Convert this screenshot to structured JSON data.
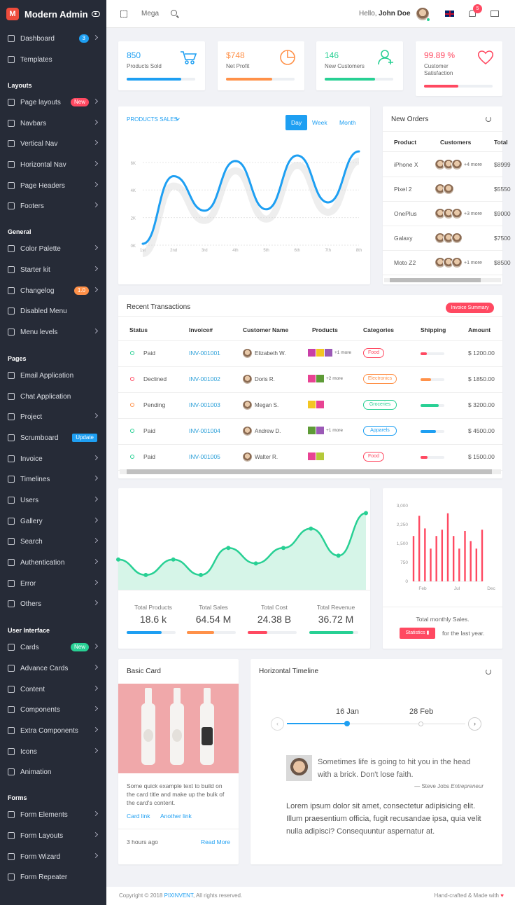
{
  "brand": {
    "name": "Modern Admin",
    "logo_letter": "M"
  },
  "topbar": {
    "mega_label": "Mega",
    "greeting": "Hello,",
    "user_name": "John Doe",
    "notif_count": "5"
  },
  "sidebar": {
    "items": [
      {
        "label": "Dashboard",
        "icon": "home-icon",
        "badge": "3",
        "badge_color": "#1e9ff2"
      },
      {
        "label": "Templates",
        "icon": "monitor-icon"
      },
      {
        "section": "Layouts"
      },
      {
        "label": "Page layouts",
        "icon": "columns-icon",
        "badge": "New",
        "badge_color": "#ff4961"
      },
      {
        "label": "Navbars",
        "icon": "menu-icon"
      },
      {
        "label": "Vertical Nav",
        "icon": "vertical-arrows-icon"
      },
      {
        "label": "Horizontal Nav",
        "icon": "horizontal-arrows-icon"
      },
      {
        "label": "Page Headers",
        "icon": "header-icon"
      },
      {
        "label": "Footers",
        "icon": "download-icon"
      },
      {
        "section": "General"
      },
      {
        "label": "Color Palette",
        "icon": "brush-icon"
      },
      {
        "label": "Starter kit",
        "icon": "gear-icon"
      },
      {
        "label": "Changelog",
        "icon": "copy-icon",
        "badge": "1.0",
        "badge_color": "#ff9149"
      },
      {
        "label": "Disabled Menu",
        "icon": "eye-off-icon"
      },
      {
        "label": "Menu levels",
        "icon": "settings-icon"
      },
      {
        "section": "Pages"
      },
      {
        "label": "Email Application",
        "icon": "mail-icon"
      },
      {
        "label": "Chat Application",
        "icon": "chat-icon"
      },
      {
        "label": "Project",
        "icon": "briefcase-icon"
      },
      {
        "label": "Scrumboard",
        "icon": "check-square-icon",
        "badge": "Update",
        "badge_color": "#1e9ff2"
      },
      {
        "label": "Invoice",
        "icon": "file-icon"
      },
      {
        "label": "Timelines",
        "icon": "timeline-icon"
      },
      {
        "label": "Users",
        "icon": "user-icon"
      },
      {
        "label": "Gallery",
        "icon": "image-icon"
      },
      {
        "label": "Search",
        "icon": "search-icon"
      },
      {
        "label": "Authentication",
        "icon": "lock-icon"
      },
      {
        "label": "Error",
        "icon": "warning-icon"
      },
      {
        "label": "Others",
        "icon": "document-icon"
      },
      {
        "section": "User Interface"
      },
      {
        "label": "Cards",
        "icon": "card-icon",
        "badge": "New",
        "badge_color": "#28d094"
      },
      {
        "label": "Advance Cards",
        "icon": "stack-icon"
      },
      {
        "label": "Content",
        "icon": "compass-icon"
      },
      {
        "label": "Components",
        "icon": "grid-icon"
      },
      {
        "label": "Extra Components",
        "icon": "diamond-icon"
      },
      {
        "label": "Icons",
        "icon": "eye-icon"
      },
      {
        "label": "Animation",
        "icon": "spinner-icon"
      },
      {
        "section": "Forms"
      },
      {
        "label": "Form Elements",
        "icon": "form-icon"
      },
      {
        "label": "Form Layouts",
        "icon": "layout-icon"
      },
      {
        "label": "Form Wizard",
        "icon": "wizard-icon"
      },
      {
        "label": "Form Repeater",
        "icon": "repeat-icon"
      }
    ]
  },
  "stats": [
    {
      "value": "850",
      "label": "Products Sold",
      "color": "#1e9ff2",
      "progress": 0.8,
      "icon": "cart-icon"
    },
    {
      "value": "$748",
      "label": "Net Profit",
      "color": "#ff9149",
      "progress": 0.67,
      "icon": "pie-icon"
    },
    {
      "value": "146",
      "label": "New Customers",
      "color": "#28d094",
      "progress": 0.73,
      "icon": "user-add-icon"
    },
    {
      "value": "99.89 %",
      "label": "Customer Satisfaction",
      "color": "#ff4961",
      "progress": 0.5,
      "icon": "heart-icon"
    }
  ],
  "products_sales": {
    "title": "PRODUCTS SALES",
    "tabs": [
      "Day",
      "Week",
      "Month"
    ],
    "active_tab": "Day"
  },
  "chart_data": [
    {
      "type": "line",
      "title": "PRODUCTS SALES",
      "categories": [
        "1st",
        "2nd",
        "3rd",
        "4th",
        "5th",
        "6th",
        "7th",
        "8th"
      ],
      "y_ticks": [
        "0K",
        "2K",
        "4K",
        "6K"
      ],
      "values": [
        0.1,
        5.0,
        2.5,
        6.1,
        2.6,
        6.5,
        3.1,
        6.8
      ],
      "ylim": [
        0,
        6.5
      ],
      "color": "#1e9ff2"
    },
    {
      "type": "area",
      "values": [
        4,
        2,
        4,
        2,
        5.5,
        3.5,
        5.5,
        8,
        4.5,
        10
      ],
      "color": "#28d094"
    },
    {
      "type": "bar",
      "x_ticks": [
        "Feb",
        "Jul",
        "Dec"
      ],
      "y_ticks": [
        "0",
        "750",
        "1,500",
        "2,250",
        "3,000"
      ],
      "values": [
        1800,
        2600,
        2100,
        1300,
        1800,
        2050,
        2700,
        1800,
        1300,
        2000,
        1600,
        1300,
        2050
      ],
      "ylim": [
        0,
        3000
      ],
      "color": "#ff4961"
    }
  ],
  "new_orders": {
    "title": "New Orders",
    "columns": [
      "Product",
      "Customers",
      "Total"
    ],
    "rows": [
      {
        "product": "iPhone X",
        "avatars": 3,
        "more": "+4 more",
        "total": "$8999"
      },
      {
        "product": "Pixel 2",
        "avatars": 2,
        "more": "",
        "total": "$5550"
      },
      {
        "product": "OnePlus",
        "avatars": 3,
        "more": "+3 more",
        "total": "$9000"
      },
      {
        "product": "Galaxy",
        "avatars": 3,
        "more": "",
        "total": "$7500"
      },
      {
        "product": "Moto Z2",
        "avatars": 3,
        "more": "+1 more",
        "total": "$8500"
      }
    ]
  },
  "transactions": {
    "title": "Recent Transactions",
    "summary_button": "Invoice Summary",
    "columns": [
      "Status",
      "Invoice#",
      "Customer Name",
      "Products",
      "Categories",
      "Shipping",
      "Amount"
    ],
    "rows": [
      {
        "status": "Paid",
        "status_color": "#28d094",
        "invoice": "INV-001001",
        "customer": "Elizabeth W.",
        "more": "+1 more",
        "category": "Food",
        "cat_color": "#ff4961",
        "ship_color": "#ff4961",
        "ship": 0.25,
        "amount": "$ 1200.00"
      },
      {
        "status": "Declined",
        "status_color": "#ff4961",
        "invoice": "INV-001002",
        "customer": "Doris R.",
        "more": "+2 more",
        "category": "Electronics",
        "cat_color": "#ff9149",
        "ship_color": "#ff9149",
        "ship": 0.45,
        "amount": "$ 1850.00"
      },
      {
        "status": "Pending",
        "status_color": "#ff9149",
        "invoice": "INV-001003",
        "customer": "Megan S.",
        "more": "",
        "category": "Groceries",
        "cat_color": "#28d094",
        "ship_color": "#28d094",
        "ship": 0.75,
        "amount": "$ 3200.00"
      },
      {
        "status": "Paid",
        "status_color": "#28d094",
        "invoice": "INV-001004",
        "customer": "Andrew D.",
        "more": "+1 more",
        "category": "Apparels",
        "cat_color": "#1e9ff2",
        "ship_color": "#1e9ff2",
        "ship": 0.65,
        "amount": "$ 4500.00"
      },
      {
        "status": "Paid",
        "status_color": "#28d094",
        "invoice": "INV-001005",
        "customer": "Walter R.",
        "more": "",
        "category": "Food",
        "cat_color": "#ff4961",
        "ship_color": "#ff4961",
        "ship": 0.3,
        "amount": "$ 1500.00"
      }
    ]
  },
  "summary": [
    {
      "label": "Total Products",
      "value": "18.6 k",
      "color": "#1e9ff2",
      "progress": 0.72
    },
    {
      "label": "Total Sales",
      "value": "64.54 M",
      "color": "#ff9149",
      "progress": 0.55
    },
    {
      "label": "Total Cost",
      "value": "24.38 B",
      "color": "#ff4961",
      "progress": 0.4
    },
    {
      "label": "Total Revenue",
      "value": "36.72 M",
      "color": "#28d094",
      "progress": 0.9
    }
  ],
  "monthly": {
    "caption": "Total monthly Sales.",
    "button": "Statistics",
    "suffix": "for the last year."
  },
  "basic_card": {
    "title": "Basic Card",
    "text": "Some quick example text to build on the card title and make up the bulk of the card's content.",
    "link1": "Card link",
    "link2": "Another link",
    "time": "3 hours ago",
    "read_more": "Read More"
  },
  "timeline": {
    "title": "Horizontal Timeline",
    "dates": [
      "16 Jan",
      "28 Feb"
    ],
    "quote": "Sometimes life is going to hit you in the head with a brick. Don't lose faith.",
    "quote_author": "— Steve Jobs",
    "quote_role": "Entrepreneur",
    "body": "Lorem ipsum dolor sit amet, consectetur adipisicing elit. Illum praesentium officia, fugit recusandae ipsa, quia velit nulla adipisci? Consequuntur aspernatur at."
  },
  "footer": {
    "copyright": "Copyright © 2018",
    "brand": "PIXINVENT",
    "rights": ", All rights reserved.",
    "right_text": "Hand-crafted & Made with"
  }
}
